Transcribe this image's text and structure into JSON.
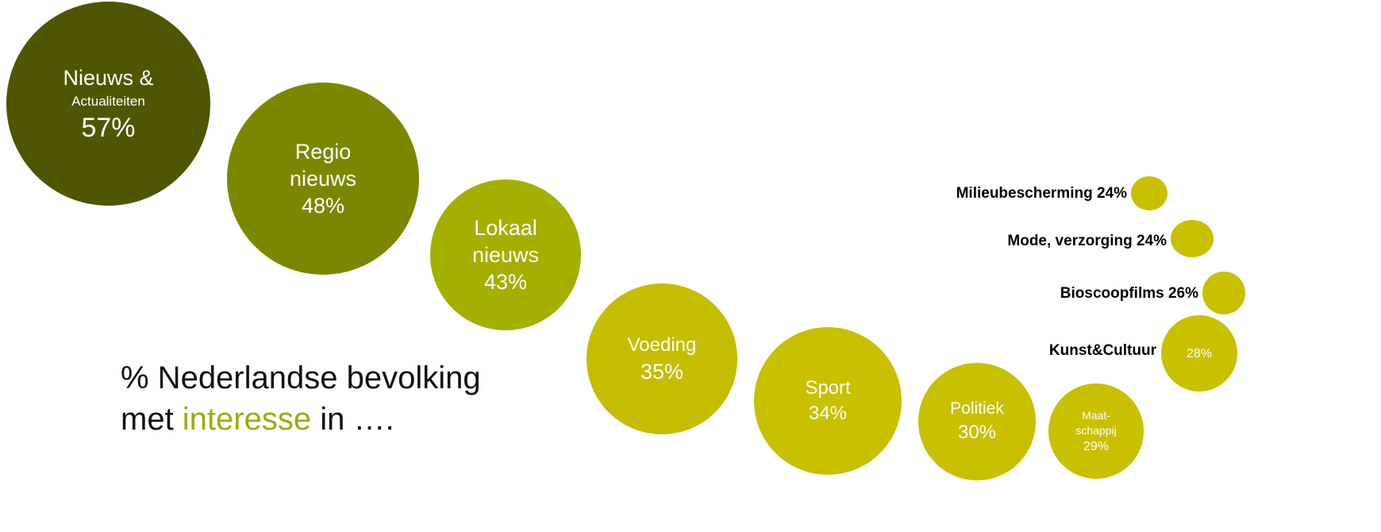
{
  "chart_data": {
    "type": "bubble",
    "title": "% Nederlandse bevolking met interesse in ….",
    "unit": "%",
    "items": [
      {
        "name": "Nieuws & Actualiteiten",
        "value": 57,
        "color": "#4f5500"
      },
      {
        "name": "Regio nieuws",
        "value": 48,
        "color": "#7c8700"
      },
      {
        "name": "Lokaal nieuws",
        "value": 43,
        "color": "#a3b000"
      },
      {
        "name": "Voeding",
        "value": 35,
        "color": "#c4bd00"
      },
      {
        "name": "Sport",
        "value": 34,
        "color": "#c8c000"
      },
      {
        "name": "Politiek",
        "value": 30,
        "color": "#c8c000"
      },
      {
        "name": "Maatschappij",
        "value": 29,
        "color": "#c8c000"
      },
      {
        "name": "Kunst&Cultuur",
        "value": 28,
        "color": "#c8c000"
      },
      {
        "name": "Bioscoopfilms",
        "value": 26,
        "color": "#c8c000"
      },
      {
        "name": "Mode, verzorging",
        "value": 24,
        "color": "#c8c000"
      },
      {
        "name": "Milieubescherming",
        "value": 24,
        "color": "#c8c000"
      }
    ]
  },
  "bubbles": {
    "nieuws": {
      "line1": "Nieuws &",
      "line2": "Actualiteiten",
      "pct": "57%"
    },
    "regio": {
      "line1": "Regio",
      "line2": "nieuws",
      "pct": "48%"
    },
    "lokaal": {
      "line1": "Lokaal",
      "line2": "nieuws",
      "pct": "43%"
    },
    "voeding": {
      "line1": "Voeding",
      "pct": "35%"
    },
    "sport": {
      "line1": "Sport",
      "pct": "34%"
    },
    "politiek": {
      "line1": "Politiek",
      "pct": "30%"
    },
    "maatschappij": {
      "line1": "Maat-",
      "line2": "schappij",
      "pct": "29%"
    },
    "kunst": {
      "pct": "28%"
    }
  },
  "side_labels": {
    "milieu": "Milieubescherming 24%",
    "mode": "Mode, verzorging 24%",
    "bioscoop": "Bioscoopfilms 26%",
    "kunst": "Kunst&Cultuur"
  },
  "caption": {
    "line1": "% Nederlandse bevolking",
    "line2_pre": "met ",
    "line2_highlight": "interesse",
    "line2_post": " in …."
  },
  "colors": {
    "dark_olive": "#4f5500",
    "olive": "#7c8700",
    "lime": "#a3b000",
    "yellow": "#c8c000",
    "highlight_text": "#9bac10"
  }
}
